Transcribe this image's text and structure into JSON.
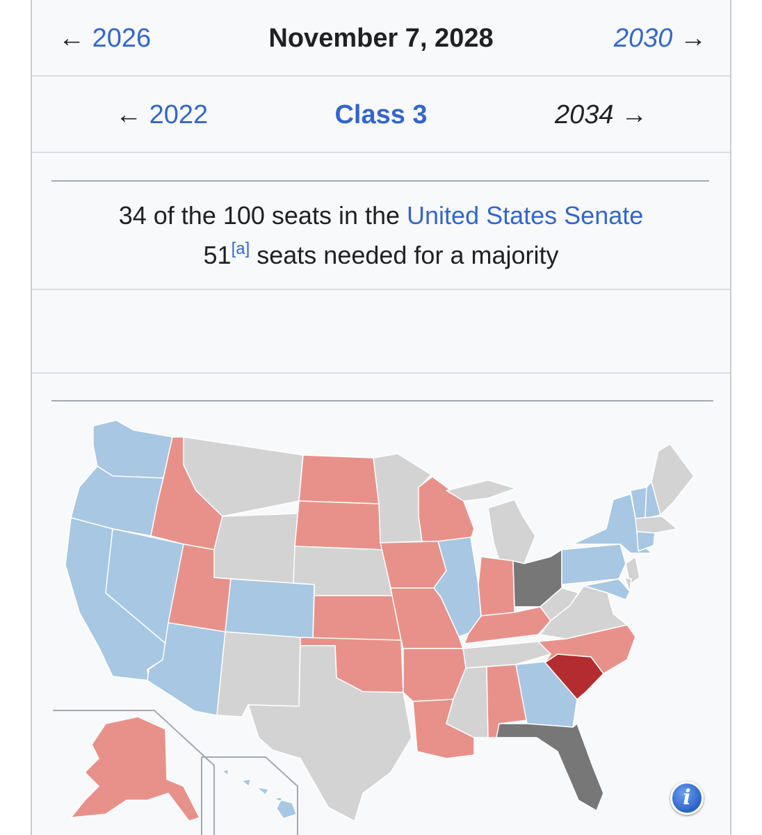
{
  "nav": {
    "prev_election": "2026",
    "current_date": "November 7, 2028",
    "next_election": "2030",
    "prev_class": "2022",
    "class_label": "Class 3",
    "next_class": "2034",
    "arrow_left": "←",
    "arrow_right": "→"
  },
  "description": {
    "line1_prefix": "34 of the 100 seats in the ",
    "line1_link": "United States Senate",
    "line2_number": "51",
    "line2_note": "[a]",
    "line2_suffix": " seats needed for a majority"
  },
  "map_colors": {
    "democratic": "#a7c7e3",
    "republican": "#e8918a",
    "no_election": "#d3d3d3",
    "special": "#777777",
    "highlight": "#b22c30"
  },
  "info_button_label": "i",
  "icons": {
    "info": "info-icon"
  }
}
